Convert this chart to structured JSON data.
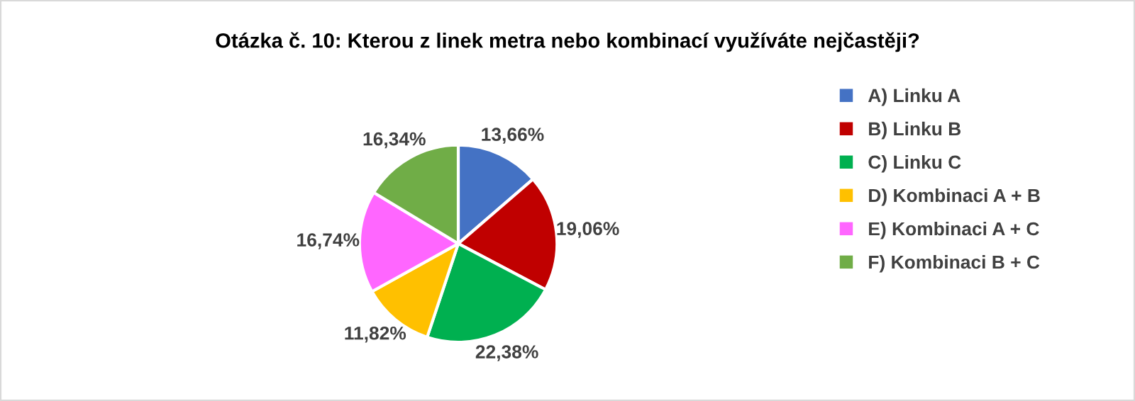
{
  "chart_data": {
    "type": "pie",
    "title": "Otázka č. 10: Kterou z linek metra nebo kombinací využíváte nejčastěji?",
    "categories": [
      "A) Linku A",
      "B) Linku B",
      "C) Linku C",
      "D) Kombinaci A + B",
      "E) Kombinaci A + C",
      "F) Kombinaci B + C"
    ],
    "values": [
      13.66,
      19.06,
      22.38,
      11.82,
      16.74,
      16.34
    ],
    "value_labels": [
      "13,66%",
      "19,06%",
      "22,38%",
      "11,82%",
      "16,74%",
      "16,34%"
    ],
    "colors": [
      "#4472c4",
      "#c00000",
      "#00b050",
      "#ffc000",
      "#ff66ff",
      "#70ad47"
    ],
    "legend": "right"
  }
}
